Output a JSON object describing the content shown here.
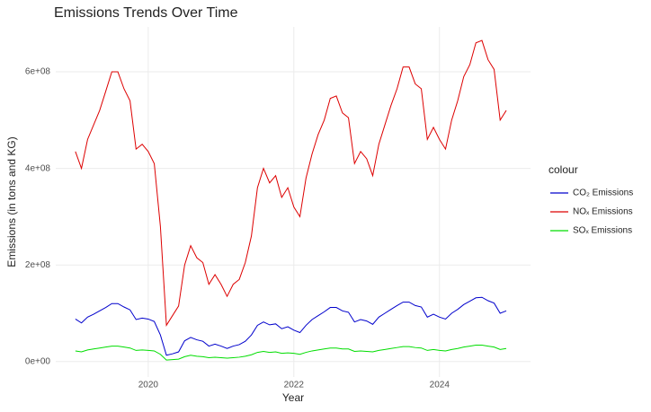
{
  "chart_data": {
    "type": "line",
    "title": "Emissions Trends Over Time",
    "x_label": "Year",
    "y_label": "Emissions (in tons and KG)",
    "legend_title": "colour",
    "legend_position": "right",
    "grid": true,
    "x": [
      2019,
      2019.083,
      2019.167,
      2019.25,
      2019.333,
      2019.417,
      2019.5,
      2019.583,
      2019.667,
      2019.75,
      2019.833,
      2019.917,
      2020,
      2020.083,
      2020.167,
      2020.25,
      2020.333,
      2020.417,
      2020.5,
      2020.583,
      2020.667,
      2020.75,
      2020.833,
      2020.917,
      2021,
      2021.083,
      2021.167,
      2021.25,
      2021.333,
      2021.417,
      2021.5,
      2021.583,
      2021.667,
      2021.75,
      2021.833,
      2021.917,
      2022,
      2022.083,
      2022.167,
      2022.25,
      2022.333,
      2022.417,
      2022.5,
      2022.583,
      2022.667,
      2022.75,
      2022.833,
      2022.917,
      2023,
      2023.083,
      2023.167,
      2023.25,
      2023.333,
      2023.417,
      2023.5,
      2023.583,
      2023.667,
      2023.75,
      2023.833,
      2023.917,
      2024,
      2024.083,
      2024.167,
      2024.25,
      2024.333,
      2024.417,
      2024.5,
      2024.583,
      2024.667,
      2024.75,
      2024.833,
      2024.917
    ],
    "xlim": [
      2018.73,
      2025.25
    ],
    "xticks": [
      2020,
      2022,
      2024
    ],
    "ylim": [
      -32000000.0,
      693000000.0
    ],
    "yticks": [
      {
        "value": 0,
        "label": "0e+00"
      },
      {
        "value": 200000000.0,
        "label": "2e+08"
      },
      {
        "value": 400000000.0,
        "label": "4e+08"
      },
      {
        "value": 600000000.0,
        "label": "6e+08"
      }
    ],
    "series": [
      {
        "name": "CO₂ Emissions",
        "color": "#0000cc",
        "values": [
          88000000.0,
          80000000.0,
          92000000.0,
          98000000.0,
          105000000.0,
          112000000.0,
          120000000.0,
          120000000.0,
          113000000.0,
          107000000.0,
          87000000.0,
          90000000.0,
          88000000.0,
          83000000.0,
          55000000.0,
          13000000.0,
          16000000.0,
          20000000.0,
          43000000.0,
          50000000.0,
          45000000.0,
          42000000.0,
          32000000.0,
          36000000.0,
          32000000.0,
          27000000.0,
          32000000.0,
          35000000.0,
          42000000.0,
          55000000.0,
          75000000.0,
          82000000.0,
          76000000.0,
          78000000.0,
          68000000.0,
          72000000.0,
          65000000.0,
          60000000.0,
          75000000.0,
          87000000.0,
          95000000.0,
          103000000.0,
          112000000.0,
          112000000.0,
          105000000.0,
          102000000.0,
          82000000.0,
          87000000.0,
          84000000.0,
          77000000.0,
          92000000.0,
          100000000.0,
          108000000.0,
          116000000.0,
          123000000.0,
          123000000.0,
          116000000.0,
          113000000.0,
          92000000.0,
          98000000.0,
          92000000.0,
          88000000.0,
          100000000.0,
          108000000.0,
          118000000.0,
          125000000.0,
          132000000.0,
          133000000.0,
          126000000.0,
          121000000.0,
          100000000.0,
          105000000.0
        ]
      },
      {
        "name": "NOₓ Emissions",
        "color": "#dd0000",
        "values": [
          435000000.0,
          400000000.0,
          460000000.0,
          490000000.0,
          520000000.0,
          560000000.0,
          600000000.0,
          600000000.0,
          565000000.0,
          540000000.0,
          440000000.0,
          450000000.0,
          435000000.0,
          410000000.0,
          280000000.0,
          75000000.0,
          95000000.0,
          115000000.0,
          200000000.0,
          240000000.0,
          215000000.0,
          205000000.0,
          160000000.0,
          180000000.0,
          160000000.0,
          135000000.0,
          160000000.0,
          170000000.0,
          205000000.0,
          260000000.0,
          360000000.0,
          400000000.0,
          370000000.0,
          385000000.0,
          340000000.0,
          360000000.0,
          320000000.0,
          300000000.0,
          380000000.0,
          430000000.0,
          470000000.0,
          500000000.0,
          545000000.0,
          550000000.0,
          515000000.0,
          505000000.0,
          410000000.0,
          435000000.0,
          420000000.0,
          385000000.0,
          450000000.0,
          490000000.0,
          530000000.0,
          565000000.0,
          610000000.0,
          610000000.0,
          575000000.0,
          565000000.0,
          460000000.0,
          485000000.0,
          460000000.0,
          440000000.0,
          500000000.0,
          540000000.0,
          590000000.0,
          615000000.0,
          660000000.0,
          665000000.0,
          625000000.0,
          605000000.0,
          500000000.0,
          520000000.0
        ]
      },
      {
        "name": "SOₓ Emissions",
        "color": "#00dd00",
        "values": [
          22000000.0,
          20000000.0,
          24000000.0,
          26000000.0,
          28000000.0,
          30000000.0,
          32000000.0,
          32000000.0,
          30000000.0,
          28000000.0,
          23000000.0,
          24000000.0,
          23000000.0,
          22000000.0,
          15000000.0,
          3000000.0,
          4000000.0,
          5000000.0,
          10000000.0,
          13000000.0,
          11000000.0,
          10000000.0,
          8000000.0,
          9000000.0,
          8000000.0,
          7000000.0,
          8000000.0,
          9000000.0,
          11000000.0,
          14000000.0,
          19000000.0,
          21000000.0,
          19000000.0,
          20000000.0,
          17000000.0,
          18000000.0,
          17000000.0,
          15000000.0,
          19000000.0,
          22000000.0,
          24000000.0,
          26000000.0,
          28000000.0,
          28000000.0,
          26000000.0,
          26000000.0,
          21000000.0,
          22000000.0,
          21000000.0,
          20000000.0,
          23000000.0,
          25000000.0,
          27000000.0,
          29000000.0,
          31000000.0,
          31000000.0,
          29000000.0,
          28000000.0,
          23000000.0,
          25000000.0,
          23000000.0,
          22000000.0,
          25000000.0,
          27000000.0,
          30000000.0,
          32000000.0,
          34000000.0,
          34000000.0,
          32000000.0,
          30000000.0,
          25000000.0,
          27000000.0
        ]
      }
    ]
  }
}
